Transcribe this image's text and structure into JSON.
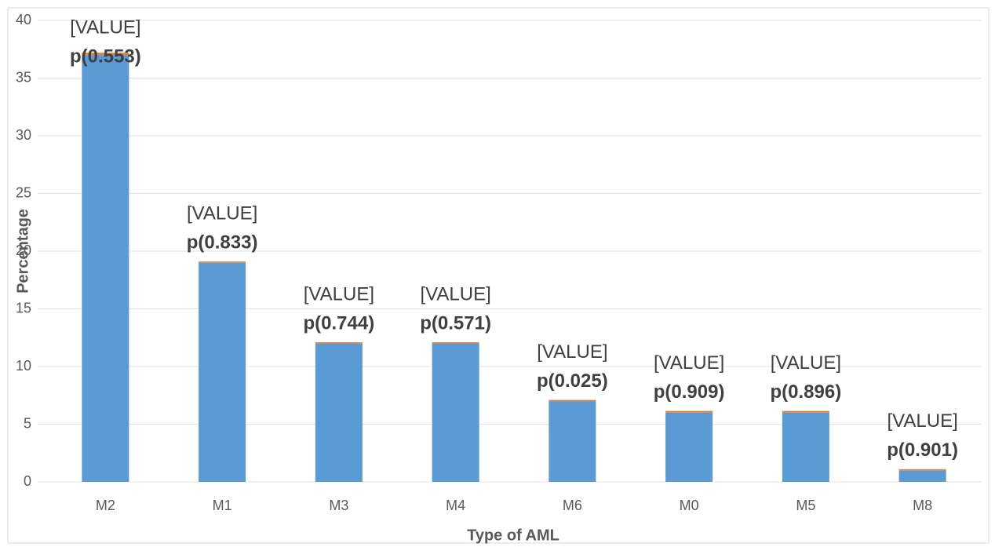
{
  "chart_data": {
    "type": "stacked_bar",
    "x_label": "Type of AML",
    "y_label": "Percentage",
    "categories": [
      "M2",
      "M1",
      "M3",
      "M4",
      "M6",
      "M0",
      "M5",
      "M8"
    ],
    "series": [
      {
        "color": "#5b9bd5",
        "values": [
          37,
          19,
          12,
          12,
          7,
          6,
          6,
          1
        ]
      },
      {
        "color": "#ed7d31",
        "values": [
          0.2,
          0.1,
          0.1,
          0.1,
          0.1,
          0.15,
          0.15,
          0.1
        ]
      }
    ],
    "annotations": [
      {
        "text": "[VALUE]",
        "p": "p(0.553)"
      },
      {
        "text": "[VALUE]",
        "p": "p(0.833)"
      },
      {
        "text": "[VALUE]",
        "p": "p(0.744)"
      },
      {
        "text": "[VALUE]",
        "p": "p(0.571)"
      },
      {
        "text": "[VALUE]",
        "p": "p(0.025)"
      },
      {
        "text": "[VALUE]",
        "p": "p(0.909)"
      },
      {
        "text": "[VALUE]",
        "p": "p(0.896)"
      },
      {
        "text": "[VALUE]",
        "p": "p(0.901)"
      }
    ],
    "ylim": [
      0,
      40
    ],
    "yticks": [
      0,
      5,
      10,
      15,
      20,
      25,
      30,
      35,
      40
    ],
    "grid": true
  }
}
